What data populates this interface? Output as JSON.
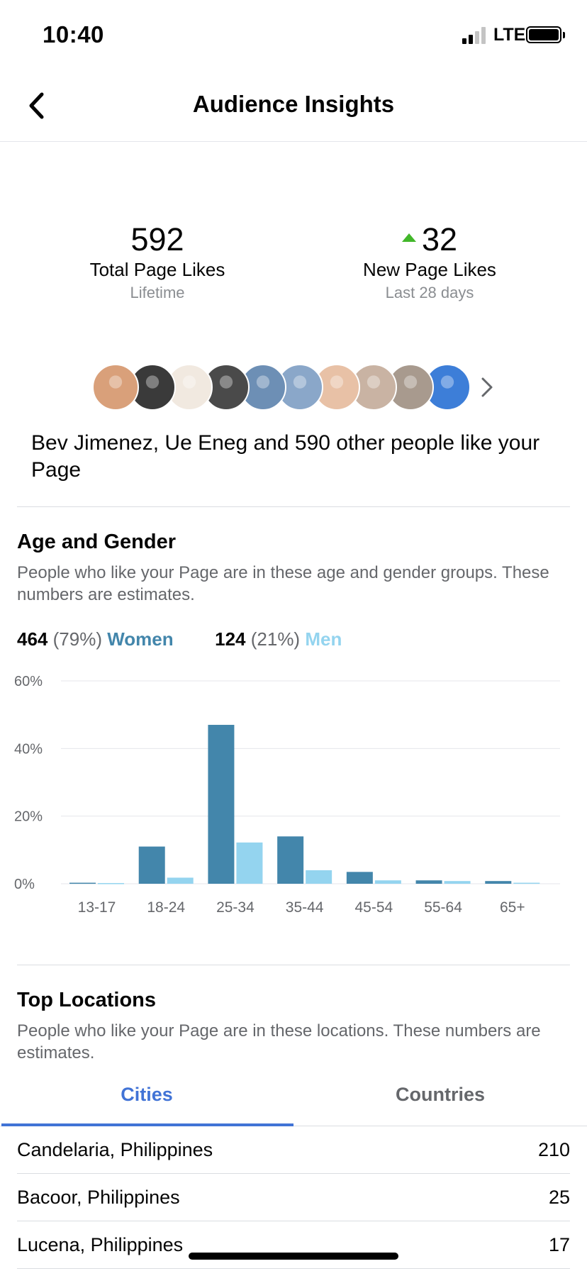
{
  "status_bar": {
    "time": "10:40",
    "network": "LTE"
  },
  "header": {
    "title": "Audience Insights"
  },
  "stats": {
    "total": {
      "value": "592",
      "label": "Total Page Likes",
      "sub": "Lifetime"
    },
    "new": {
      "value": "32",
      "label": "New Page Likes",
      "sub": "Last 28 days"
    }
  },
  "likers": {
    "avatar_colors": [
      "#d9a07a",
      "#3a3a3a",
      "#f1e9e0",
      "#4a4a4a",
      "#6d8fb5",
      "#8aa7c9",
      "#e8c1a6",
      "#c9b3a3",
      "#a89a8e",
      "#3d7ed8"
    ],
    "text": "Bev Jimenez, Ue Eneg and 590 other people like your Page"
  },
  "age_gender": {
    "title": "Age and Gender",
    "description": "People who like your Page are in these age and gender groups. These numbers are estimates.",
    "women": {
      "count": "464",
      "pct": "(79%)",
      "label": "Women",
      "color": "#4386ab"
    },
    "men": {
      "count": "124",
      "pct": "(21%)",
      "label": "Men",
      "color": "#94d4ef"
    }
  },
  "chart_data": {
    "type": "bar",
    "categories": [
      "13-17",
      "18-24",
      "25-34",
      "35-44",
      "45-54",
      "55-64",
      "65+"
    ],
    "series": [
      {
        "name": "Women",
        "values": [
          0.3,
          11,
          47,
          14,
          3.5,
          1,
          0.8
        ],
        "color": "#4386ab"
      },
      {
        "name": "Men",
        "values": [
          0.2,
          1.8,
          12.2,
          4,
          1,
          0.8,
          0.3
        ],
        "color": "#94d4ef"
      }
    ],
    "yticks": [
      "0%",
      "20%",
      "40%",
      "60%"
    ],
    "ylim": [
      0,
      60
    ],
    "grid": true
  },
  "locations": {
    "title": "Top Locations",
    "description": "People who like your Page are in these locations. These numbers are estimates.",
    "tabs": {
      "cities": "Cities",
      "countries": "Countries"
    },
    "rows": [
      {
        "name": "Candelaria, Philippines",
        "value": "210"
      },
      {
        "name": "Bacoor, Philippines",
        "value": "25"
      },
      {
        "name": "Lucena, Philippines",
        "value": "17"
      }
    ]
  }
}
